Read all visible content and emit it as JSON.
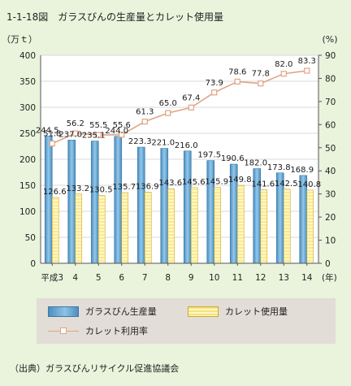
{
  "figure": {
    "number": "1-1-18図",
    "title": "ガラスびんの生産量とカレット使用量"
  },
  "source": "（出典）ガラスびんリサイクル促進協議会",
  "colors": {
    "production": "#6aa8d4",
    "cullet": "#fbe98e",
    "rate": "#e0a585"
  },
  "chart_data": {
    "type": "bar",
    "categories": [
      "平成3",
      "4",
      "5",
      "6",
      "7",
      "8",
      "9",
      "10",
      "11",
      "12",
      "13",
      "14"
    ],
    "x_unit": "(年)",
    "left_axis": {
      "unit": "（万ｔ）",
      "range": [
        0,
        400
      ],
      "ticks": [
        0,
        50,
        100,
        150,
        200,
        250,
        300,
        350,
        400
      ]
    },
    "right_axis": {
      "unit": "(%)",
      "range": [
        0,
        90
      ],
      "ticks": [
        0,
        10,
        20,
        30,
        40,
        50,
        60,
        70,
        80,
        90
      ]
    },
    "grid": true,
    "legend_position": "bottom",
    "series": [
      {
        "name": "ガラスびん生産量",
        "type": "bar",
        "axis": "left",
        "values": [
          244.5,
          237.0,
          235.1,
          244.0,
          223.3,
          221.0,
          216.0,
          197.5,
          190.6,
          182.0,
          173.8,
          168.9
        ],
        "labels": [
          "244.5",
          "237.0",
          "235.1",
          "244.0",
          "223.3",
          "221.0",
          "216.0",
          "197.5",
          "190.6",
          "182.0",
          "173.8",
          "168.9"
        ]
      },
      {
        "name": "カレット使用量",
        "type": "bar",
        "axis": "left",
        "values": [
          126.6,
          133.2,
          130.5,
          135.7,
          136.9,
          143.6,
          145.6,
          145.9,
          149.8,
          141.6,
          142.5,
          140.8
        ],
        "labels": [
          "126.6",
          "133.2",
          "130.5",
          "135.7",
          "136.9",
          "143.6",
          "145.6",
          "145.9",
          "149.8",
          "141.6",
          "142.5",
          "140.8"
        ]
      },
      {
        "name": "カレット利用率",
        "type": "line",
        "axis": "right",
        "values": [
          51.8,
          56.2,
          55.5,
          55.6,
          61.3,
          65.0,
          67.4,
          73.9,
          78.6,
          77.8,
          82.0,
          83.3
        ],
        "labels": [
          "51.8",
          "56.2",
          "55.5",
          "55.6",
          "61.3",
          "65.0",
          "67.4",
          "73.9",
          "78.6",
          "77.8",
          "82.0",
          "83.3"
        ]
      }
    ]
  }
}
